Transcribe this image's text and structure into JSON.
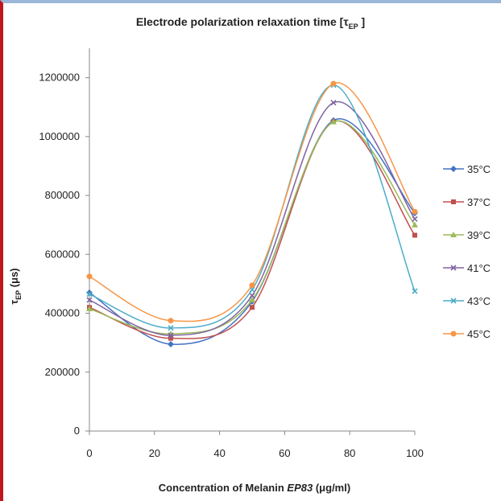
{
  "chart_data": {
    "type": "line",
    "title": "Electrode polarization relaxation time [τ",
    "title_sub": "EP",
    "title_close": "]",
    "xlabel_pre": "Concentration of Melanin ",
    "xlabel_em": "EP83",
    "xlabel_post": " (μg/ml)",
    "ylabel_main": "τ",
    "ylabel_sub": "EP",
    "ylabel_unit": " (μs)",
    "x": [
      0,
      25,
      50,
      75,
      100
    ],
    "xlim": [
      0,
      100
    ],
    "ylim": [
      0,
      1300000
    ],
    "x_ticks": [
      0,
      20,
      40,
      60,
      80,
      100
    ],
    "y_ticks": [
      0,
      200000,
      400000,
      600000,
      800000,
      1000000,
      1200000
    ],
    "x_tick_labels": [
      "0",
      "20",
      "40",
      "60",
      "80",
      "100"
    ],
    "y_tick_labels": [
      "0",
      "200000",
      "400000",
      "600000",
      "800000",
      "1000000",
      "1200000"
    ],
    "legend_position": "right",
    "series": [
      {
        "name": "35°C",
        "color": "#4472c4",
        "marker": "diamond",
        "values": [
          470000,
          295000,
          440000,
          1055000,
          740000
        ]
      },
      {
        "name": "37°C",
        "color": "#c0504d",
        "marker": "square",
        "values": [
          420000,
          315000,
          420000,
          1050000,
          665000
        ]
      },
      {
        "name": "39°C",
        "color": "#9bbb59",
        "marker": "triangle",
        "values": [
          415000,
          330000,
          445000,
          1050000,
          700000
        ]
      },
      {
        "name": "41°C",
        "color": "#8064a2",
        "marker": "x",
        "values": [
          445000,
          325000,
          460000,
          1115000,
          720000
        ]
      },
      {
        "name": "43°C",
        "color": "#4bacc6",
        "marker": "x",
        "values": [
          465000,
          350000,
          480000,
          1175000,
          475000
        ]
      },
      {
        "name": "45°C",
        "color": "#f79646",
        "marker": "circle",
        "values": [
          525000,
          375000,
          495000,
          1180000,
          745000
        ]
      }
    ]
  }
}
